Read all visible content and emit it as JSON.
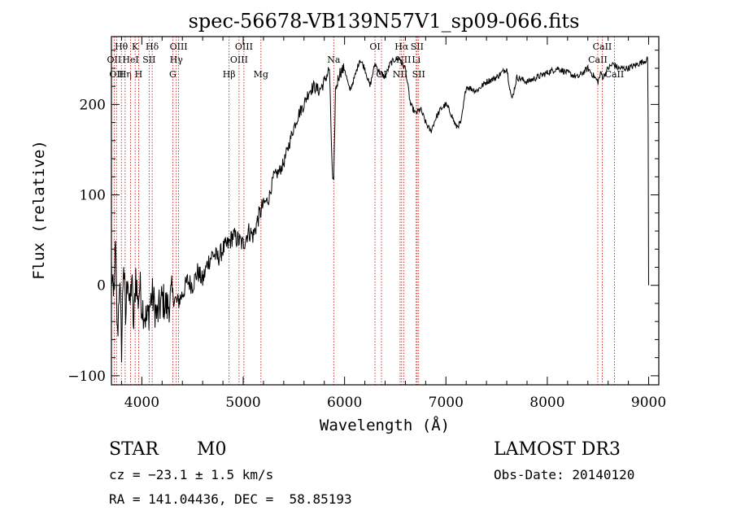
{
  "chart_data": {
    "type": "line",
    "title": "spec-56678-VB139N57V1_sp09-066.fits",
    "xlabel": "Wavelength (Å)",
    "ylabel": "Flux (relative)",
    "xlim": [
      3700,
      9100
    ],
    "ylim": [
      -110,
      275
    ],
    "xticks": [
      4000,
      5000,
      6000,
      7000,
      8000,
      9000
    ],
    "yticks": [
      -100,
      0,
      100,
      200
    ],
    "series": [
      {
        "name": "flux",
        "x": [
          3700,
          3720,
          3740,
          3760,
          3780,
          3800,
          3820,
          3840,
          3860,
          3880,
          3900,
          3920,
          3940,
          3960,
          3980,
          4000,
          4050,
          4100,
          4150,
          4200,
          4250,
          4300,
          4350,
          4400,
          4450,
          4500,
          4550,
          4600,
          4650,
          4700,
          4750,
          4800,
          4850,
          4900,
          4950,
          5000,
          5050,
          5100,
          5150,
          5200,
          5250,
          5300,
          5350,
          5400,
          5450,
          5500,
          5550,
          5600,
          5650,
          5700,
          5750,
          5800,
          5850,
          5880,
          5893,
          5910,
          5950,
          6000,
          6050,
          6100,
          6150,
          6200,
          6250,
          6300,
          6350,
          6400,
          6450,
          6500,
          6550,
          6563,
          6600,
          6650,
          6700,
          6750,
          6800,
          6850,
          6900,
          6950,
          7000,
          7050,
          7100,
          7150,
          7200,
          7300,
          7400,
          7500,
          7600,
          7650,
          7700,
          7800,
          7900,
          8000,
          8100,
          8200,
          8300,
          8400,
          8500,
          8530,
          8550,
          8600,
          8650,
          8700,
          8800,
          8900,
          8990,
          8995,
          9000
        ],
        "y": [
          20,
          -20,
          40,
          -60,
          10,
          -70,
          30,
          -40,
          20,
          -30,
          10,
          -50,
          15,
          -20,
          0,
          -20,
          -40,
          -10,
          -35,
          -15,
          -25,
          -10,
          -20,
          -10,
          5,
          0,
          15,
          5,
          25,
          35,
          30,
          40,
          45,
          55,
          50,
          45,
          60,
          55,
          75,
          90,
          95,
          120,
          125,
          135,
          155,
          175,
          190,
          200,
          215,
          220,
          215,
          225,
          240,
          120,
          110,
          215,
          235,
          240,
          215,
          230,
          250,
          240,
          220,
          245,
          235,
          230,
          245,
          250,
          250,
          245,
          240,
          200,
          190,
          195,
          180,
          170,
          185,
          195,
          200,
          190,
          175,
          180,
          220,
          215,
          225,
          230,
          240,
          205,
          230,
          225,
          230,
          235,
          240,
          235,
          230,
          240,
          225,
          235,
          230,
          240,
          245,
          240,
          240,
          245,
          250,
          180,
          0
        ]
      }
    ],
    "lines": [
      {
        "wl": 3727,
        "label": "OII",
        "row": 2
      },
      {
        "wl": 3750,
        "label": "OII",
        "row": 3
      },
      {
        "wl": 3798,
        "label": "Hθ",
        "row": 1
      },
      {
        "wl": 3835,
        "label": "Hη",
        "row": 3
      },
      {
        "wl": 3889,
        "label": "HeI",
        "row": 2
      },
      {
        "wl": 3934,
        "label": "K",
        "row": 1
      },
      {
        "wl": 3968,
        "label": "H",
        "row": 3
      },
      {
        "wl": 4072,
        "label": "SII",
        "row": 2
      },
      {
        "wl": 4102,
        "label": "Hδ",
        "row": 1
      },
      {
        "wl": 4305,
        "label": "G",
        "row": 3
      },
      {
        "wl": 4340,
        "label": "Hγ",
        "row": 2
      },
      {
        "wl": 4363,
        "label": "OIII",
        "row": 1
      },
      {
        "wl": 4861,
        "label": "Hβ",
        "row": 3
      },
      {
        "wl": 4959,
        "label": "OIII",
        "row": 2
      },
      {
        "wl": 5007,
        "label": "OIII",
        "row": 1
      },
      {
        "wl": 5175,
        "label": "Mg",
        "row": 3
      },
      {
        "wl": 5893,
        "label": "Na",
        "row": 2
      },
      {
        "wl": 6300,
        "label": "OI",
        "row": 1
      },
      {
        "wl": 6364,
        "label": "OI",
        "row": 3
      },
      {
        "wl": 6548,
        "label": "NII",
        "row": 3
      },
      {
        "wl": 6563,
        "label": "Hα",
        "row": 1
      },
      {
        "wl": 6583,
        "label": "NII",
        "row": 2
      },
      {
        "wl": 6707,
        "label": "Li",
        "row": 2
      },
      {
        "wl": 6716,
        "label": "SII",
        "row": 1
      },
      {
        "wl": 6731,
        "label": "SII",
        "row": 3
      },
      {
        "wl": 8498,
        "label": "CaII",
        "row": 2
      },
      {
        "wl": 8542,
        "label": "CaII",
        "row": 1
      },
      {
        "wl": 8662,
        "label": "CaII",
        "row": 3
      }
    ]
  },
  "info": {
    "object_class": "STAR",
    "subclass": "M0",
    "survey": "LAMOST DR3",
    "cz": "cz = −23.1 ± 1.5 km/s",
    "obs_date": "Obs-Date: 20140120",
    "coords": "RA = 141.04436, DEC =  58.85193"
  },
  "colors": {
    "axes": "#000000",
    "spectrum": "#000000",
    "line_marker": "#cc0000"
  }
}
